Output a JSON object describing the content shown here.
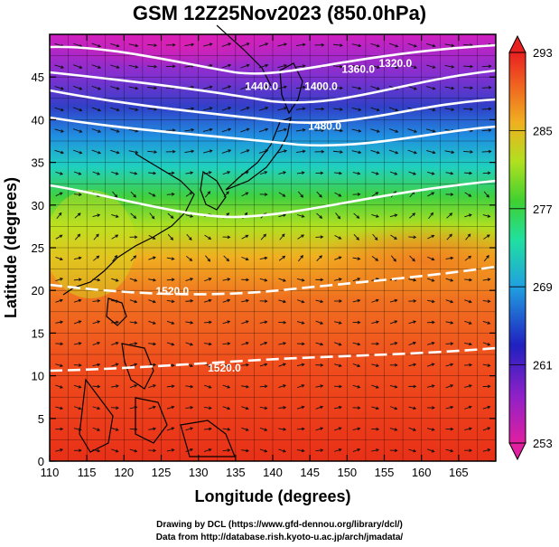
{
  "title": "GSM 12Z25Nov2023 (850.0hPa)",
  "axes": {
    "xlabel": "Longitude (degrees)",
    "ylabel": "Latitude  (degrees)",
    "x_ticks": [
      "110",
      "115",
      "120",
      "125",
      "130",
      "135",
      "140",
      "145",
      "150",
      "155",
      "160",
      "165"
    ],
    "y_ticks": [
      "0",
      "5",
      "10",
      "15",
      "20",
      "25",
      "30",
      "35",
      "40",
      "45"
    ],
    "x_range": [
      110,
      170
    ],
    "y_range": [
      0,
      50
    ]
  },
  "colorbar": {
    "labels": [
      "293",
      "285",
      "277",
      "269",
      "261",
      "253"
    ],
    "min": 253,
    "max": 293,
    "colors": [
      "#e6208f",
      "#b020c0",
      "#3020c0",
      "#2060e0",
      "#20b8e0",
      "#20e0a0",
      "#30d030",
      "#a0e020",
      "#f0d020",
      "#f09020",
      "#f05020",
      "#e82020"
    ]
  },
  "contours": [
    {
      "label": "1320.0",
      "lon": 156.5,
      "lat": 46.2
    },
    {
      "label": "1360.0",
      "lon": 151.5,
      "lat": 45.5
    },
    {
      "label": "1400.0",
      "lon": 146.5,
      "lat": 43.5
    },
    {
      "label": "1440.0",
      "lon": 138.5,
      "lat": 43.5
    },
    {
      "label": "1480.0",
      "lon": 147.0,
      "lat": 38.8
    },
    {
      "label": "1520.0",
      "lon": 126.5,
      "lat": 19.5
    },
    {
      "label": "1520.0",
      "lon": 133.5,
      "lat": 10.5
    }
  ],
  "chart_data": {
    "type": "heatmap",
    "title": "GSM 12Z25Nov2023 (850.0hPa)",
    "xlabel": "Longitude (degrees)",
    "ylabel": "Latitude  (degrees)",
    "xlim": [
      110,
      170
    ],
    "ylim": [
      0,
      50
    ],
    "colorbar_range": [
      253,
      293
    ],
    "colorbar_ticks": [
      253,
      261,
      269,
      277,
      285,
      293
    ],
    "geopotential_height_contours": [
      1320,
      1360,
      1400,
      1440,
      1480,
      1520
    ]
  },
  "footer": {
    "line1": "Drawing by DCL (https://www.gfd-dennou.org/library/dcl/)",
    "line2": "Data from http://database.rish.kyoto-u.ac.jp/arch/jmadata/"
  }
}
